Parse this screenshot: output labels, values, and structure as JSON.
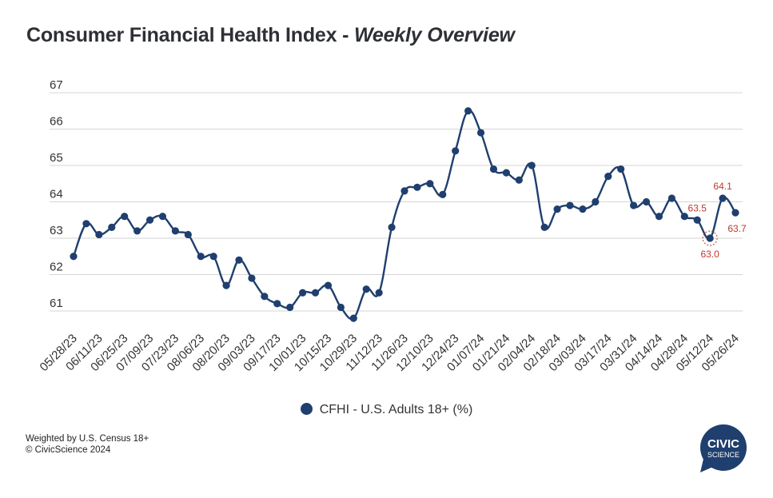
{
  "title": {
    "main": "Consumer Financial Health Index - ",
    "sub": "Weekly Overview"
  },
  "legend": {
    "label": "CFHI - U.S. Adults 18+ (%)"
  },
  "notes": {
    "line1": "Weighted by U.S. Census 18+",
    "line2": "© CivicScience 2024"
  },
  "logo": {
    "line1": "CIVIC",
    "line2": "SCIENCE"
  },
  "colors": {
    "series": "#1f3f6e",
    "annotation": "#c0392b",
    "grid": "#d6d6d6",
    "logo": "#1f3f6e"
  },
  "chart_data": {
    "type": "line",
    "title": "Consumer Financial Health Index - Weekly Overview",
    "xlabel": "",
    "ylabel": "",
    "ylim": [
      60.6,
      67
    ],
    "yticks": [
      61,
      62,
      63,
      64,
      65,
      66,
      67
    ],
    "grid": true,
    "legend_position": "bottom",
    "x": [
      "05/28/23",
      "06/04/23",
      "06/11/23",
      "06/18/23",
      "06/25/23",
      "07/02/23",
      "07/09/23",
      "07/16/23",
      "07/23/23",
      "07/30/23",
      "08/06/23",
      "08/13/23",
      "08/20/23",
      "08/27/23",
      "09/03/23",
      "09/10/23",
      "09/17/23",
      "09/24/23",
      "10/01/23",
      "10/08/23",
      "10/15/23",
      "10/22/23",
      "10/29/23",
      "11/05/23",
      "11/12/23",
      "11/19/23",
      "11/26/23",
      "12/03/23",
      "12/10/23",
      "12/17/23",
      "12/24/23",
      "12/31/23",
      "01/07/24",
      "01/14/24",
      "01/21/24",
      "01/28/24",
      "02/04/24",
      "02/11/24",
      "02/18/24",
      "02/25/24",
      "03/03/24",
      "03/10/24",
      "03/17/24",
      "03/24/24",
      "03/31/24",
      "04/07/24",
      "04/14/24",
      "04/21/24",
      "04/28/24",
      "05/05/24",
      "05/12/24",
      "05/19/24",
      "05/26/24"
    ],
    "x_tick_labels": [
      "05/28/23",
      "06/11/23",
      "06/25/23",
      "07/09/23",
      "07/23/23",
      "08/06/23",
      "08/20/23",
      "09/03/23",
      "09/17/23",
      "10/01/23",
      "10/15/23",
      "10/29/23",
      "11/12/23",
      "11/26/23",
      "12/10/23",
      "12/24/23",
      "01/07/24",
      "01/21/24",
      "02/04/24",
      "02/18/24",
      "03/03/24",
      "03/17/24",
      "03/31/24",
      "04/14/24",
      "04/28/24",
      "05/12/24",
      "05/26/24"
    ],
    "series": [
      {
        "name": "CFHI - U.S. Adults 18+ (%)",
        "values": [
          62.5,
          63.4,
          63.1,
          63.3,
          63.6,
          63.2,
          63.5,
          63.6,
          63.2,
          63.1,
          62.5,
          62.5,
          61.7,
          62.4,
          61.9,
          61.4,
          61.2,
          61.1,
          61.5,
          61.5,
          61.7,
          61.1,
          60.8,
          61.6,
          61.5,
          63.3,
          64.3,
          64.4,
          64.5,
          64.2,
          65.4,
          66.5,
          65.9,
          64.9,
          64.8,
          64.6,
          65.0,
          63.3,
          63.8,
          63.9,
          63.8,
          64.0,
          64.7,
          64.9,
          63.9,
          64.0,
          63.6,
          64.1,
          63.6,
          63.5,
          63.0,
          64.1,
          63.7
        ]
      }
    ],
    "annotations": [
      {
        "index": 49,
        "label": "63.5",
        "position": "above"
      },
      {
        "index": 50,
        "label": "63.0",
        "position": "below",
        "highlight": true
      },
      {
        "index": 51,
        "label": "64.1",
        "position": "above"
      },
      {
        "index": 52,
        "label": "63.7",
        "position": "below"
      }
    ]
  }
}
